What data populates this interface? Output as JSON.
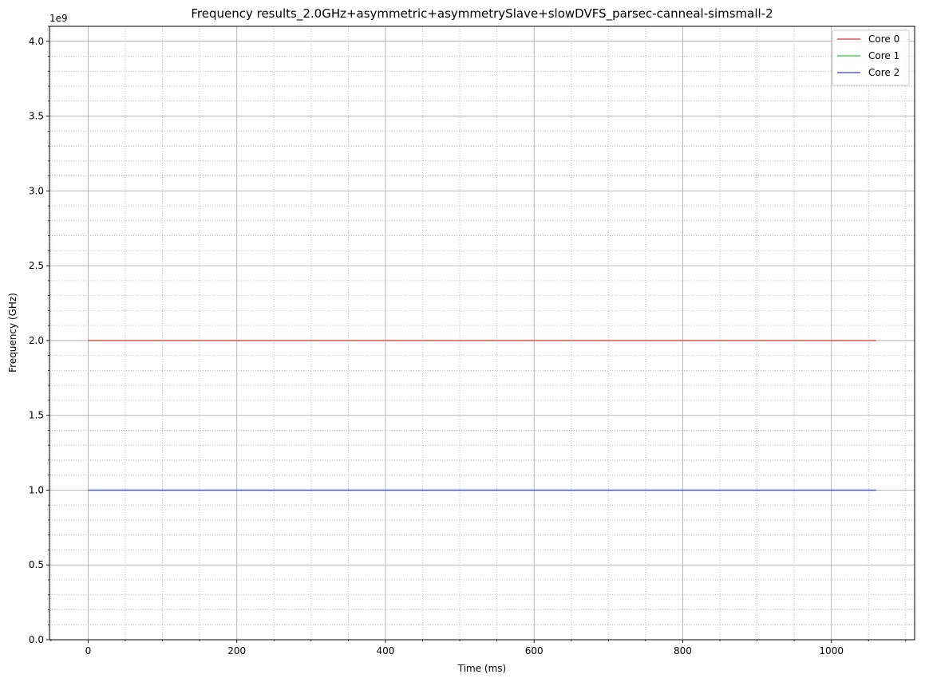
{
  "chart_data": {
    "type": "line",
    "title": "Frequency results_2.0GHz+asymmetric+asymmetrySlave+slowDVFS_parsec-canneal-simsmall-2",
    "xlabel": "Time (ms)",
    "ylabel": "Frequency (GHz)",
    "y_offset_label": "1e9",
    "xlim": [
      -52,
      1112
    ],
    "ylim": [
      0,
      4100000000
    ],
    "x_ticks": [
      0,
      200,
      400,
      600,
      800,
      1000
    ],
    "x_tick_labels": [
      "0",
      "200",
      "400",
      "600",
      "800",
      "1000"
    ],
    "x_minor_step": 50,
    "y_ticks": [
      0,
      500000000,
      1000000000,
      1500000000,
      2000000000,
      2500000000,
      3000000000,
      3500000000,
      4000000000
    ],
    "y_tick_labels": [
      "0.0",
      "0.5",
      "1.0",
      "1.5",
      "2.0",
      "2.5",
      "3.0",
      "3.5",
      "4.0"
    ],
    "y_minor_step": 100000000,
    "grid": {
      "major": true,
      "minor": true
    },
    "legend_position": "top-right",
    "series": [
      {
        "name": "Core 0",
        "color": "#e05a4e",
        "x": [
          0,
          1060
        ],
        "y": [
          2000000000,
          2000000000
        ]
      },
      {
        "name": "Core 1",
        "color": "#4cd64c",
        "x": [
          0,
          1060
        ],
        "y": [
          1000000000,
          1000000000
        ]
      },
      {
        "name": "Core 2",
        "color": "#5a5fd6",
        "x": [
          0,
          1060
        ],
        "y": [
          1000000000,
          1000000000
        ]
      }
    ]
  }
}
